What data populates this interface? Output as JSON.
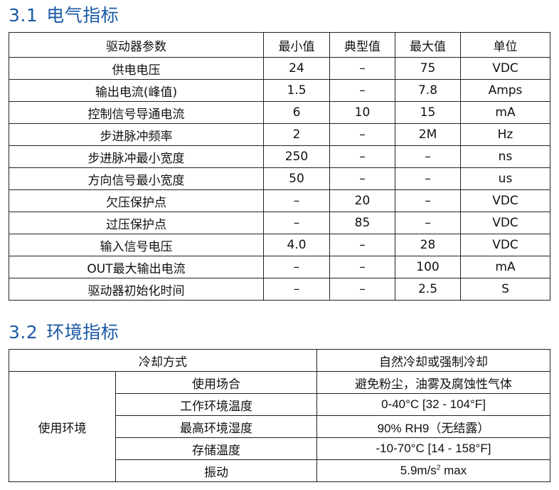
{
  "section1": {
    "number": "3.1",
    "title": "电气指标",
    "headers": [
      "驱动器参数",
      "最小值",
      "典型值",
      "最大值",
      "单位"
    ],
    "rows": [
      [
        "供电电压",
        "24",
        "–",
        "75",
        "VDC"
      ],
      [
        "输出电流(峰值)",
        "1.5",
        "–",
        "7.8",
        "Amps"
      ],
      [
        "控制信号导通电流",
        "6",
        "10",
        "15",
        "mA"
      ],
      [
        "步进脉冲频率",
        "2",
        "–",
        "2M",
        "Hz"
      ],
      [
        "步进脉冲最小宽度",
        "250",
        "–",
        "–",
        "ns"
      ],
      [
        "方向信号最小宽度",
        "50",
        "–",
        "–",
        "us"
      ],
      [
        "欠压保护点",
        "–",
        "20",
        "–",
        "VDC"
      ],
      [
        "过压保护点",
        "–",
        "85",
        "–",
        "VDC"
      ],
      [
        "输入信号电压",
        "4.0",
        "–",
        "28",
        "VDC"
      ],
      [
        "OUT最大输出电流",
        "–",
        "–",
        "100",
        "mA"
      ],
      [
        "驱动器初始化时间",
        "–",
        "–",
        "2.5",
        "S"
      ]
    ]
  },
  "section2": {
    "number": "3.2",
    "title": "环境指标",
    "cooling_label": "冷却方式",
    "cooling_value": "自然冷却或强制冷却",
    "group_label": "使用环境",
    "rows": [
      [
        "使用场合",
        "避免粉尘，油雾及腐蚀性气体"
      ],
      [
        "工作环境温度",
        "0-40°C [32 - 104°F]"
      ],
      [
        "最高环境湿度",
        "90% RH9（无结露）"
      ],
      [
        "存储温度",
        "-10-70°C [14 - 158°F]"
      ]
    ],
    "vibration_label": "振动",
    "vibration_value": "5.9m/s",
    "vibration_sup": "2",
    "vibration_suffix": " max"
  }
}
